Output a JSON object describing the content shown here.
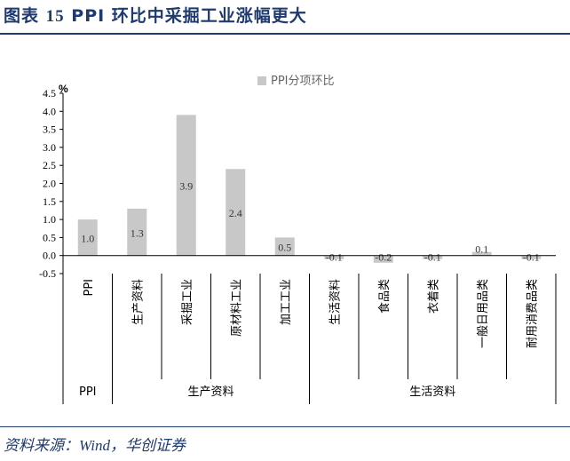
{
  "figure": {
    "title_prefix": "图表",
    "title_number": "15",
    "title_text": "PPI 环比中采掘工业涨幅更大"
  },
  "source": {
    "label": "资料来源：",
    "text": "Wind，华创证券"
  },
  "chart_data": {
    "type": "bar",
    "title": "",
    "legend": "PPI分项环比",
    "legend_position": "top-right",
    "unit_label": "%",
    "ylim": [
      -0.5,
      4.5
    ],
    "yticks": [
      "4.5",
      "4.0",
      "3.5",
      "3.0",
      "2.5",
      "2.0",
      "1.5",
      "1.0",
      "0.5",
      "0.0",
      "-0.5"
    ],
    "grid": false,
    "categories": [
      "PPI",
      "生产资料",
      "采掘工业",
      "原材料工业",
      "加工工业",
      "生活资料",
      "食品类",
      "衣着类",
      "一般日用品类",
      "耐用消费品类"
    ],
    "values": [
      1.0,
      1.3,
      3.9,
      2.4,
      0.5,
      -0.1,
      -0.2,
      -0.1,
      0.1,
      -0.1
    ],
    "value_labels": [
      "1.0",
      "1.3",
      "3.9",
      "2.4",
      "0.5",
      "-0.1",
      "-0.2",
      "-0.1",
      "0.1",
      "-0.1"
    ],
    "groups": [
      {
        "label": "PPI",
        "count": 1
      },
      {
        "label": "生产资料",
        "count": 4
      },
      {
        "label": "生活资料",
        "count": 5
      }
    ],
    "bar_color": "#c8c8c8"
  }
}
